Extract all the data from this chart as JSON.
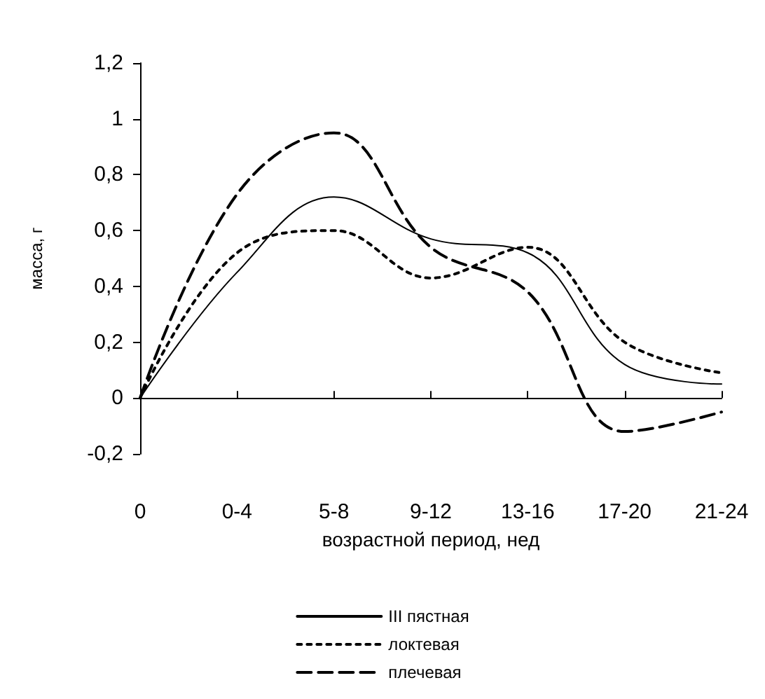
{
  "chart_data": {
    "type": "line",
    "xlabel": "возрастной период, нед",
    "ylabel": "масса, г",
    "categories": [
      "0",
      "0-4",
      "5-8",
      "9-12",
      "13-16",
      "17-20",
      "21-24"
    ],
    "series": [
      {
        "name": "III пястная",
        "color": "#000000",
        "line_style": "solid",
        "values": [
          0,
          0.45,
          0.72,
          0.57,
          0.52,
          0.12,
          0.05
        ]
      },
      {
        "name": "локтевая",
        "color": "#000000",
        "line_style": "dotted",
        "values": [
          0,
          0.52,
          0.6,
          0.43,
          0.54,
          0.2,
          0.09
        ]
      },
      {
        "name": "плечевая",
        "color": "#000000",
        "line_style": "dashed",
        "values": [
          0,
          0.73,
          0.95,
          0.54,
          0.38,
          -0.12,
          -0.05
        ]
      }
    ],
    "ylim": [
      -0.2,
      1.2
    ],
    "yticks": [
      {
        "value": -0.2,
        "label": "-0,2"
      },
      {
        "value": 0,
        "label": "0"
      },
      {
        "value": 0.2,
        "label": "0,2"
      },
      {
        "value": 0.4,
        "label": "0,4"
      },
      {
        "value": 0.6,
        "label": "0,6"
      },
      {
        "value": 0.8,
        "label": "0,8"
      },
      {
        "value": 1,
        "label": "1"
      },
      {
        "value": 1.2,
        "label": "1,2"
      }
    ],
    "legend": "bottom",
    "marker": "none"
  }
}
